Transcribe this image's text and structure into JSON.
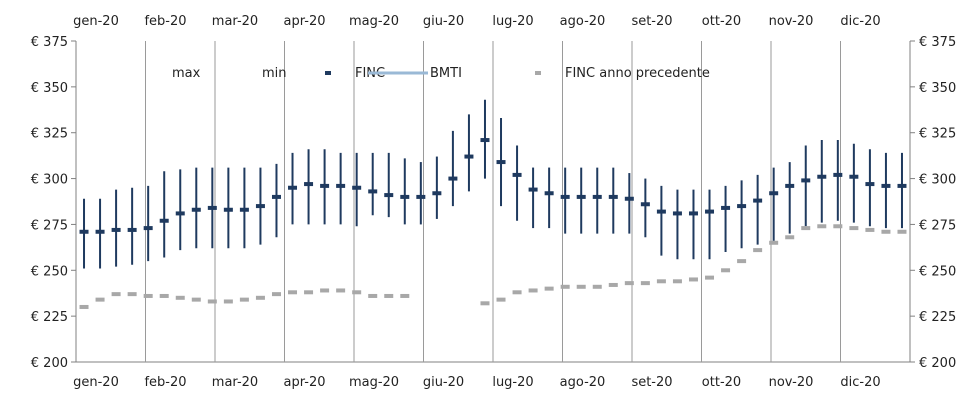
{
  "chart_data": {
    "type": "line",
    "title": "",
    "xlabel": "",
    "ylabel": "",
    "ylim": [
      200,
      375
    ],
    "y_ticks": [
      200,
      225,
      250,
      275,
      300,
      325,
      350,
      375
    ],
    "y_tick_labels": [
      "€ 200",
      "€ 225",
      "€ 250",
      "€ 275",
      "€ 300",
      "€ 325",
      "€ 350",
      "€ 375"
    ],
    "month_labels": [
      "gen-20",
      "feb-20",
      "mar-20",
      "apr-20",
      "mag-20",
      "giu-20",
      "lug-20",
      "ago-20",
      "set-20",
      "ott-20",
      "nov-20",
      "dic-20"
    ],
    "grid": "vertical month lines",
    "legend_position": "top",
    "legend": [
      {
        "label": "max",
        "kind": "none"
      },
      {
        "label": "min",
        "kind": "none"
      },
      {
        "label": "FINC",
        "kind": "dash",
        "color": "#1f3a5f"
      },
      {
        "label": "BMTI",
        "kind": "line",
        "color": "#9ab9d6"
      },
      {
        "label": "FINC anno precedente",
        "kind": "dash",
        "color": "#a8a8a8"
      }
    ],
    "colors": {
      "finc": "#1f3a5f",
      "range": "#1f3a5f",
      "prev": "#a8a8a8",
      "bmti": "#9ab9d6",
      "grid": "#9a9a9a",
      "axis": "#808080"
    },
    "weeks": 52,
    "finc": [
      271,
      271,
      272,
      272,
      273,
      277,
      281,
      283,
      284,
      283,
      283,
      285,
      290,
      295,
      297,
      296,
      296,
      295,
      293,
      291,
      290,
      290,
      292,
      300,
      312,
      321,
      309,
      302,
      294,
      292,
      290,
      290,
      290,
      290,
      289,
      286,
      282,
      281,
      281,
      282,
      284,
      285,
      288,
      292,
      296,
      299,
      301,
      302,
      301,
      297,
      296,
      296
    ],
    "max": [
      289,
      289,
      294,
      295,
      296,
      304,
      305,
      306,
      306,
      306,
      306,
      306,
      308,
      314,
      316,
      316,
      314,
      314,
      314,
      314,
      311,
      309,
      312,
      326,
      335,
      343,
      333,
      318,
      306,
      306,
      306,
      306,
      306,
      306,
      303,
      300,
      296,
      294,
      294,
      294,
      296,
      299,
      302,
      306,
      309,
      318,
      321,
      321,
      319,
      316,
      314,
      314
    ],
    "min": [
      251,
      251,
      252,
      253,
      255,
      257,
      261,
      262,
      262,
      262,
      262,
      264,
      268,
      275,
      275,
      275,
      275,
      274,
      280,
      279,
      275,
      275,
      278,
      285,
      293,
      300,
      285,
      277,
      273,
      273,
      270,
      270,
      270,
      270,
      270,
      268,
      258,
      256,
      256,
      256,
      260,
      262,
      264,
      266,
      270,
      274,
      276,
      277,
      276,
      274,
      273,
      273
    ],
    "prev": [
      230,
      234,
      237,
      237,
      236,
      236,
      235,
      234,
      233,
      233,
      234,
      235,
      237,
      238,
      238,
      239,
      239,
      238,
      236,
      236,
      236,
      null,
      null,
      null,
      null,
      232,
      234,
      238,
      239,
      240,
      241,
      241,
      241,
      242,
      243,
      243,
      244,
      244,
      245,
      246,
      250,
      255,
      261,
      265,
      268,
      273,
      274,
      274,
      273,
      272,
      271,
      271
    ]
  }
}
